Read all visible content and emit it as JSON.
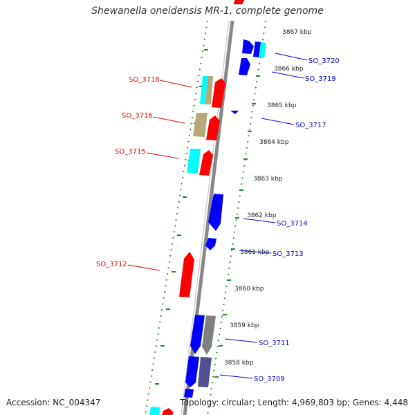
{
  "title": "Shewanella oneidensis MR-1, complete genome",
  "footer": {
    "accession": "Accession: NC_004347",
    "summary": "Topology: circular; Length: 4,969,803 bp; Genes: 4,448"
  },
  "ticks": [
    "3867 kbp",
    "3866 kbp",
    "3865 kbp",
    "3864 kbp",
    "3863 kbp",
    "3862 kbp",
    "3861 kbp",
    "3860 kbp",
    "3859 kbp",
    "3858 kbp"
  ],
  "labels_right": [
    "SO_3720",
    "SO_3719",
    "SO_3717",
    "SO_3714",
    "SO_3713",
    "SO_3711",
    "SO_3709"
  ],
  "labels_left": [
    "SO_3718",
    "SO_3716",
    "SO_3715",
    "SO_3712"
  ],
  "colors": {
    "forward": "#ff0000",
    "reverse": "#0000ff",
    "cyan": "#00ffff",
    "khaki": "#b5a97a",
    "gray": "#808080",
    "slate": "#505090",
    "dots": "#228b22",
    "backbone": "#888888",
    "label_left": "#dd0000",
    "label_right": "#0000cc"
  }
}
